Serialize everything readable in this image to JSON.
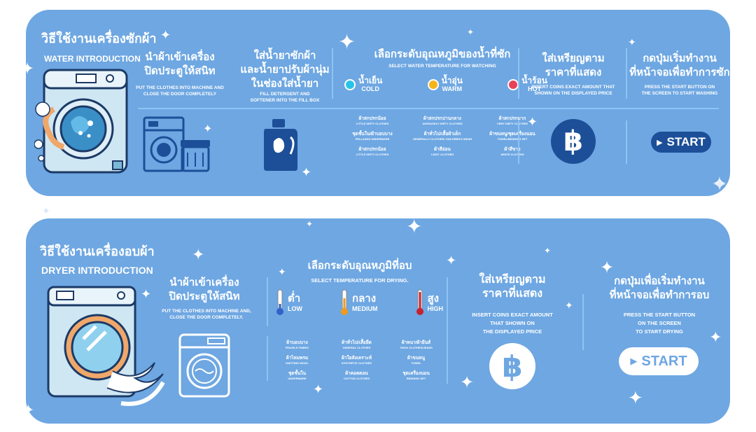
{
  "washer": {
    "title": "วิธีใช้งานเครื่องซักผ้า",
    "subtitle": "WATER INTRODUCTION",
    "step1": {
      "th": "นำผ้าเข้าเครื่อง\nปิดประตูให้สนิท",
      "en": "PUT THE CLOTHES INTO MACHINE AND\nCLOSE THE DOOR COMPLETELY"
    },
    "step2": {
      "th": "ใส่น้ำยาซักผ้า\nและน้ำยาปรับผ้านุ่ม\nในช่องใส่น้ำยา",
      "en": "FILL DETERGENT AND\nSOFTENER INTO THE FILL BOX"
    },
    "step3": {
      "th": "เลือกระดับอุณหภูมิของน้ำที่ซัก",
      "en": "SELECT WATER TEMPERATURE FOR WATCHING",
      "options": [
        {
          "th": "น้ำเย็น",
          "en": "COLD",
          "color": "#29c3e8"
        },
        {
          "th": "น้ำอุ่น",
          "en": "WARM",
          "color": "#f4b41a"
        },
        {
          "th": "น้ำร้อน",
          "en": "HOT",
          "color": "#e8415a"
        }
      ],
      "table": [
        [
          {
            "th": "ผ้าสกปรกน้อย",
            "en": "LITTLE DIRTY CLOTHES"
          },
          {
            "th": "ผ้าสกปรกปานกลาง",
            "en": "AVERAGELY DIRTY CLOTHES"
          },
          {
            "th": "ผ้าสกปรกมาก",
            "en": "VERY DIRTY CLOTHES"
          }
        ],
        [
          {
            "th": "ชุดชั้นใน/ผ้าบอบบาง",
            "en": "PELLANDS UNDERWARE"
          },
          {
            "th": "ผ้าทั่วไป/เสื้อผ้าเด็ก",
            "en": "GENERALLY CLOTHES/ CHILDREN'S WEAR"
          },
          {
            "th": "ผ้าขนหนู/ชุดเครื่องนอน",
            "en": "TOWEL/BEDDING SET"
          }
        ],
        [
          {
            "th": "ผ้าสกปรกน้อย",
            "en": "LITTLE DIRTY CLOTHES"
          },
          {
            "th": "ผ้าสีอ่อน",
            "en": "LIGHT CLOTHES"
          },
          {
            "th": "ผ้าสีขาว",
            "en": "WHITE CLOTHES"
          }
        ]
      ]
    },
    "step4": {
      "th": "ใส่เหรียญตาม\nราคาที่แสดง",
      "en": "INSERT COINS EXACT AMOUNT THAT\nSHOWN ON THE DISPLAYED PRICE",
      "coin_symbol": "฿"
    },
    "step5": {
      "th": "กดปุ่มเริ่มทำงาน\nที่หน้าจอเพื่อทำการซัก",
      "en": "PRESS THE START BUTTON ON\nTHE SCREEN TO START WASHING",
      "button": "START"
    }
  },
  "dryer": {
    "title": "วิธีใช้งานเครื่องอบผ้า",
    "subtitle": "DRYER INTRODUCTION",
    "step1": {
      "th": "นำผ้าเข้าเครื่อง\nปิดประตูให้สนิท",
      "en": "PUT THE CLOTHES INTO MACHINE AND,\nCLOSE THE DOOR COMPLETELY."
    },
    "step2": {
      "th": "เลือกระดับอุณหภูมิที่อบ",
      "en": "SELECT TEMPERATURE FOR DRYING.",
      "options": [
        {
          "th": "ต่ำ",
          "en": "LOW",
          "color": "#2f63c8"
        },
        {
          "th": "กลาง",
          "en": "MEDIUM",
          "color": "#f09a1c"
        },
        {
          "th": "สูง",
          "en": "HIGH",
          "color": "#c8202e"
        }
      ],
      "table": [
        [
          {
            "th": "ผ้าบอบบาง",
            "en": "FRAGILE FABRIC"
          },
          {
            "th": "ผ้าทั่วไป/เสื้อยืด",
            "en": "GENERAL CLOTHES"
          },
          {
            "th": "ผ้าหนา/ผ้ายีนส์",
            "en": "THICK CLOTHES/JEANS"
          }
        ],
        [
          {
            "th": "ผ้าไหมพรม",
            "en": "KNITTING WOOL"
          },
          {
            "th": "ผ้าใยสังเคราะห์",
            "en": "SYNTHETIC CLOTHES"
          },
          {
            "th": "ผ้าขนหนู",
            "en": "TOWEL"
          }
        ],
        [
          {
            "th": "ชุดชั้นใน",
            "en": "UNDERWARE"
          },
          {
            "th": "ผ้าคอตตอน",
            "en": "COTTON CLOTHES"
          },
          {
            "th": "ชุดเครื่องนอน",
            "en": "BEDDING SET"
          }
        ]
      ]
    },
    "step3": {
      "th": "ใส่เหรียญตาม\nราคาที่แสดง",
      "en": "INSERT COINS EXACT AMOUNT\nTHAT SHOWN ON\nTHE DISPLAYED PRICE",
      "coin_symbol": "฿"
    },
    "step4": {
      "th": "กดปุ่มเพื่อเริ่มทำงาน\nที่หน้าจอเพื่อทำการอบ",
      "en": "PRESS THE START BUTTON\nON THE SCREEN\nTO START DRYING",
      "button": "START"
    }
  },
  "colors": {
    "panel": "#6ea7e2",
    "navy": "#1c4f98",
    "divider": "#8fc3f2",
    "machine": "#9fd0ea"
  }
}
